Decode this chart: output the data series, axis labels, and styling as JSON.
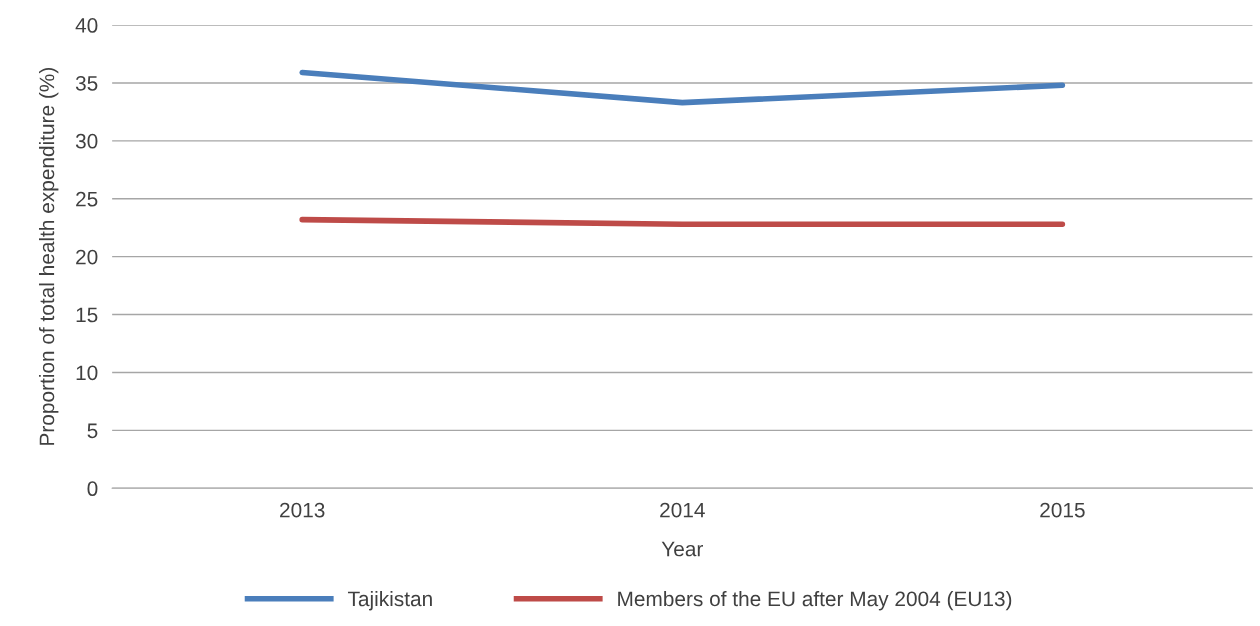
{
  "chart_data": {
    "type": "line",
    "xlabel": "Year",
    "ylabel": "Proportion of total health expenditure (%)",
    "categories": [
      "2013",
      "2014",
      "2015"
    ],
    "series": [
      {
        "name": "Tajikistan",
        "color": "#4a7ebb",
        "values": [
          35.9,
          33.3,
          34.8
        ]
      },
      {
        "name": "Members of the EU after May 2004 (EU13)",
        "color": "#be4b48",
        "values": [
          23.2,
          22.8,
          22.8
        ]
      }
    ],
    "ylim": [
      0,
      40
    ],
    "yticks": [
      0,
      5,
      10,
      15,
      20,
      25,
      30,
      35,
      40
    ],
    "grid": "y",
    "legend": "bottom",
    "marker": "none",
    "line_style": "solid"
  }
}
